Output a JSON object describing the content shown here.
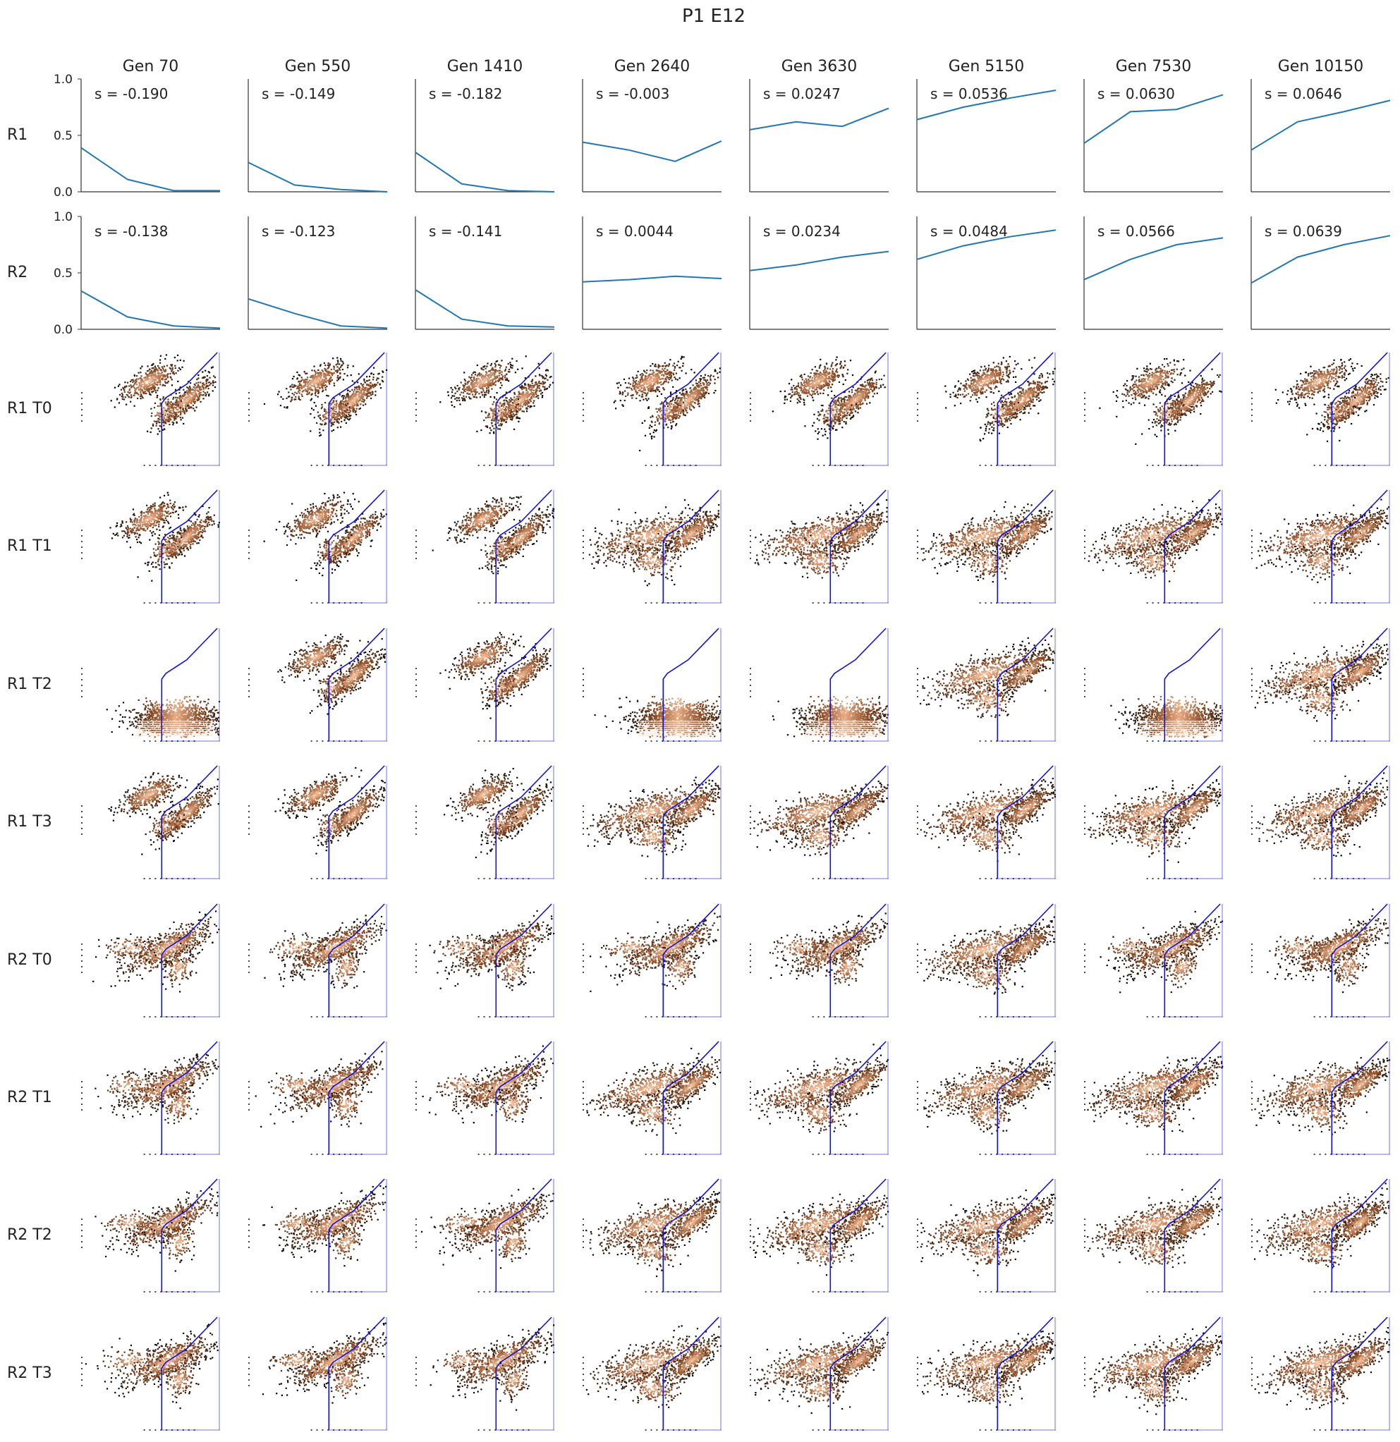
{
  "figure": {
    "title": "P1 E12"
  },
  "chart_data": {
    "type": "line",
    "title": "P1 E12",
    "columns": [
      "Gen 70",
      "Gen 550",
      "Gen 1410",
      "Gen 2640",
      "Gen 3630",
      "Gen 5150",
      "Gen 7530",
      "Gen 10150"
    ],
    "line_rows": [
      {
        "label": "R1",
        "ylim": [
          0,
          1
        ],
        "yticks": [
          "0.0",
          "0.5",
          "1.0"
        ],
        "panels": [
          {
            "s_label": "s = -0.190",
            "values": [
              0.39,
              0.11,
              0.01,
              0.01
            ]
          },
          {
            "s_label": "s = -0.149",
            "values": [
              0.26,
              0.06,
              0.02,
              0.0
            ]
          },
          {
            "s_label": "s = -0.182",
            "values": [
              0.35,
              0.07,
              0.01,
              0.0
            ]
          },
          {
            "s_label": "s = -0.003",
            "values": [
              0.44,
              0.37,
              0.27,
              0.45
            ]
          },
          {
            "s_label": "s = 0.0247",
            "values": [
              0.55,
              0.62,
              0.58,
              0.74
            ]
          },
          {
            "s_label": "s = 0.0536",
            "values": [
              0.64,
              0.75,
              0.83,
              0.9
            ]
          },
          {
            "s_label": "s = 0.0630",
            "values": [
              0.43,
              0.71,
              0.73,
              0.86
            ]
          },
          {
            "s_label": "s = 0.0646",
            "values": [
              0.37,
              0.62,
              0.71,
              0.81
            ]
          }
        ]
      },
      {
        "label": "R2",
        "ylim": [
          0,
          1
        ],
        "yticks": [
          "0.0",
          "0.5",
          "1.0"
        ],
        "panels": [
          {
            "s_label": "s = -0.138",
            "values": [
              0.34,
              0.11,
              0.03,
              0.01
            ]
          },
          {
            "s_label": "s = -0.123",
            "values": [
              0.27,
              0.14,
              0.03,
              0.01
            ]
          },
          {
            "s_label": "s = -0.141",
            "values": [
              0.35,
              0.09,
              0.03,
              0.02
            ]
          },
          {
            "s_label": "s = 0.0044",
            "values": [
              0.42,
              0.44,
              0.47,
              0.45
            ]
          },
          {
            "s_label": "s = 0.0234",
            "values": [
              0.52,
              0.57,
              0.64,
              0.69
            ]
          },
          {
            "s_label": "s = 0.0484",
            "values": [
              0.62,
              0.74,
              0.82,
              0.88
            ]
          },
          {
            "s_label": "s = 0.0566",
            "values": [
              0.44,
              0.62,
              0.75,
              0.81
            ]
          },
          {
            "s_label": "s = 0.0639",
            "values": [
              0.41,
              0.64,
              0.75,
              0.83
            ]
          }
        ]
      }
    ],
    "scatter_rows": [
      {
        "label": "R1 T0",
        "panels": [
          "bimodal",
          "bimodal",
          "bimodal",
          "bimodal",
          "bimodal",
          "bimodal",
          "bimodal",
          "bimodal"
        ]
      },
      {
        "label": "R1 T1",
        "panels": [
          "bimodal",
          "bimodal",
          "bimodal",
          "broad",
          "broad",
          "broad",
          "broad",
          "broad"
        ]
      },
      {
        "label": "R1 T2",
        "panels": [
          "blob",
          "bimodal",
          "bimodal",
          "blob",
          "blob",
          "broad",
          "blob",
          "broad"
        ]
      },
      {
        "label": "R1 T3",
        "panels": [
          "bimodal",
          "bimodal",
          "bimodal",
          "broad",
          "broad",
          "broad",
          "broad",
          "broad"
        ]
      },
      {
        "label": "R2 T0",
        "panels": [
          "single",
          "single",
          "single",
          "single",
          "single",
          "broad",
          "single",
          "single"
        ]
      },
      {
        "label": "R2 T1",
        "panels": [
          "single",
          "single",
          "single",
          "broad",
          "broad",
          "broad",
          "broad",
          "broad"
        ]
      },
      {
        "label": "R2 T2",
        "panels": [
          "single",
          "single",
          "single",
          "broad",
          "broad",
          "broad",
          "broad",
          "broad"
        ]
      },
      {
        "label": "R2 T3",
        "panels": [
          "single",
          "single",
          "single",
          "broad",
          "broad",
          "broad",
          "broad",
          "broad"
        ]
      }
    ],
    "colors": {
      "line": "#1f77b4",
      "gate": "#1010dd",
      "density_low": "#000000",
      "density_mid": "#8a4a24",
      "density_high": "#ffc39a",
      "axis": "#333333"
    },
    "grid": false,
    "legend": "none"
  }
}
